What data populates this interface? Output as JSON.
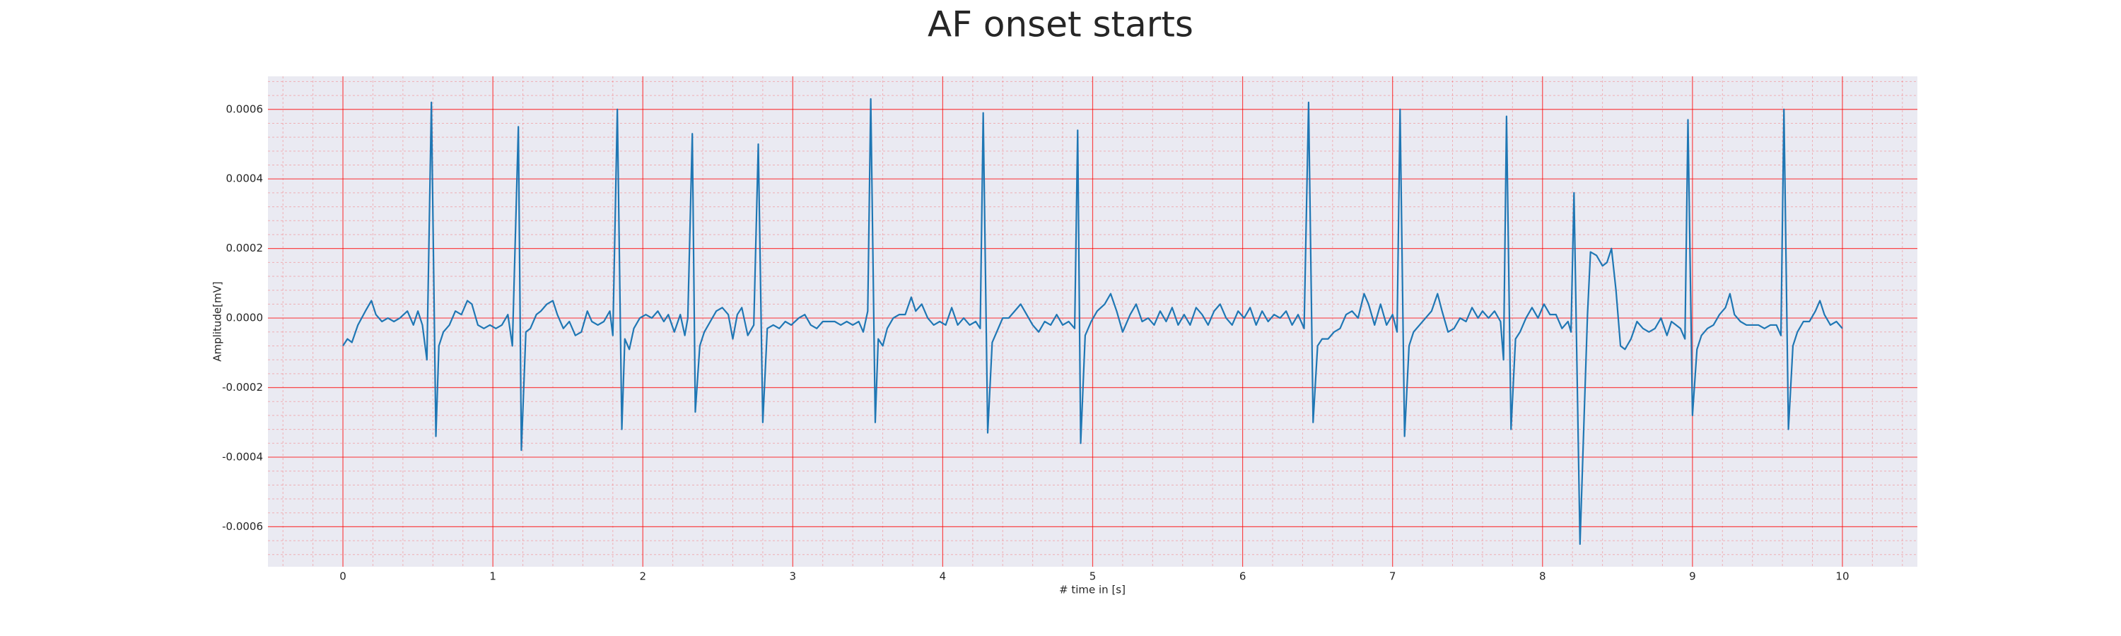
{
  "chart_data": {
    "type": "line",
    "title": "AF onset starts",
    "xlabel": "# time in [s]",
    "ylabel": "Amplitude[mV]",
    "color": "#1f77b4",
    "grid": true,
    "minor_grid": true,
    "grid_color": "#ff0000",
    "xlim": [
      -0.5,
      10.5
    ],
    "ylim": [
      -0.000715,
      0.000695
    ],
    "xticks": [
      0,
      1,
      2,
      3,
      4,
      5,
      6,
      7,
      8,
      9,
      10
    ],
    "yticks": [
      -0.0006,
      -0.0004,
      -0.0002,
      {
        "value": 0,
        "label": "0.0000"
      },
      0.0002,
      0.0004,
      0.0006
    ],
    "x": [
      0.0,
      0.03,
      0.06,
      0.1,
      0.15,
      0.19,
      0.22,
      0.26,
      0.3,
      0.34,
      0.38,
      0.43,
      0.47,
      0.5,
      0.53,
      0.56,
      0.59,
      0.62,
      0.64,
      0.67,
      0.71,
      0.75,
      0.79,
      0.83,
      0.86,
      0.9,
      0.94,
      0.98,
      1.02,
      1.06,
      1.1,
      1.13,
      1.17,
      1.19,
      1.22,
      1.25,
      1.29,
      1.32,
      1.36,
      1.4,
      1.43,
      1.47,
      1.51,
      1.55,
      1.59,
      1.63,
      1.66,
      1.7,
      1.74,
      1.78,
      1.8,
      1.83,
      1.86,
      1.88,
      1.91,
      1.94,
      1.98,
      2.02,
      2.06,
      2.1,
      2.14,
      2.17,
      2.21,
      2.25,
      2.28,
      2.3,
      2.33,
      2.35,
      2.38,
      2.41,
      2.45,
      2.49,
      2.53,
      2.57,
      2.6,
      2.63,
      2.66,
      2.7,
      2.74,
      2.77,
      2.8,
      2.83,
      2.87,
      2.91,
      2.95,
      2.99,
      3.04,
      3.08,
      3.12,
      3.16,
      3.2,
      3.24,
      3.28,
      3.32,
      3.36,
      3.4,
      3.44,
      3.47,
      3.5,
      3.52,
      3.55,
      3.57,
      3.6,
      3.63,
      3.67,
      3.71,
      3.75,
      3.79,
      3.82,
      3.86,
      3.9,
      3.94,
      3.98,
      4.02,
      4.06,
      4.1,
      4.14,
      4.18,
      4.22,
      4.25,
      4.27,
      4.3,
      4.33,
      4.36,
      4.4,
      4.44,
      4.48,
      4.52,
      4.56,
      4.6,
      4.64,
      4.68,
      4.72,
      4.76,
      4.8,
      4.84,
      4.88,
      4.9,
      4.92,
      4.95,
      4.99,
      5.03,
      5.08,
      5.12,
      5.16,
      5.2,
      5.25,
      5.29,
      5.33,
      5.37,
      5.41,
      5.45,
      5.49,
      5.53,
      5.57,
      5.61,
      5.65,
      5.69,
      5.73,
      5.77,
      5.81,
      5.85,
      5.89,
      5.93,
      5.97,
      6.01,
      6.05,
      6.09,
      6.13,
      6.17,
      6.21,
      6.25,
      6.29,
      6.33,
      6.37,
      6.41,
      6.44,
      6.47,
      6.5,
      6.53,
      6.57,
      6.61,
      6.65,
      6.69,
      6.73,
      6.77,
      6.81,
      6.84,
      6.88,
      6.92,
      6.96,
      7.0,
      7.03,
      7.05,
      7.08,
      7.11,
      7.14,
      7.18,
      7.22,
      7.26,
      7.3,
      7.33,
      7.37,
      7.41,
      7.45,
      7.49,
      7.53,
      7.57,
      7.6,
      7.64,
      7.68,
      7.72,
      7.74,
      7.76,
      7.79,
      7.82,
      7.85,
      7.89,
      7.93,
      7.97,
      8.01,
      8.05,
      8.09,
      8.13,
      8.17,
      8.19,
      8.21,
      8.25,
      8.28,
      8.3,
      8.32,
      8.36,
      8.4,
      8.43,
      8.46,
      8.49,
      8.52,
      8.55,
      8.59,
      8.63,
      8.67,
      8.71,
      8.75,
      8.79,
      8.83,
      8.86,
      8.89,
      8.92,
      8.95,
      8.97,
      9.0,
      9.03,
      9.06,
      9.1,
      9.14,
      9.18,
      9.22,
      9.25,
      9.28,
      9.32,
      9.36,
      9.4,
      9.44,
      9.48,
      9.52,
      9.56,
      9.59,
      9.61,
      9.64,
      9.67,
      9.7,
      9.74,
      9.78,
      9.82,
      9.85,
      9.88,
      9.92,
      9.96,
      10.0
    ],
    "values": [
      -8e-05,
      -6e-05,
      -7e-05,
      -2e-05,
      2e-05,
      5e-05,
      1e-05,
      -1e-05,
      0,
      -1e-05,
      0,
      2e-05,
      -2e-05,
      2e-05,
      -2e-05,
      -0.00012,
      0.00062,
      -0.00034,
      -8e-05,
      -4e-05,
      -2e-05,
      2e-05,
      1e-05,
      5e-05,
      4e-05,
      -2e-05,
      -3e-05,
      -2e-05,
      -3e-05,
      -2e-05,
      1e-05,
      -8e-05,
      0.00055,
      -0.00038,
      -4e-05,
      -3e-05,
      1e-05,
      2e-05,
      4e-05,
      5e-05,
      1e-05,
      -3e-05,
      -1e-05,
      -5e-05,
      -4e-05,
      2e-05,
      -1e-05,
      -2e-05,
      -1e-05,
      2e-05,
      -5e-05,
      0.0006,
      -0.00032,
      -6e-05,
      -9e-05,
      -3e-05,
      0,
      1e-05,
      0,
      2e-05,
      -1e-05,
      1e-05,
      -4e-05,
      1e-05,
      -5e-05,
      0,
      0.00053,
      -0.00027,
      -8e-05,
      -4e-05,
      -1e-05,
      2e-05,
      3e-05,
      1e-05,
      -6e-05,
      1e-05,
      3e-05,
      -5e-05,
      -2e-05,
      0.0005,
      -0.0003,
      -3e-05,
      -2e-05,
      -3e-05,
      -1e-05,
      -2e-05,
      0,
      1e-05,
      -2e-05,
      -3e-05,
      -1e-05,
      -1e-05,
      -1e-05,
      -2e-05,
      -1e-05,
      -2e-05,
      -1e-05,
      -4e-05,
      2e-05,
      0.00063,
      -0.0003,
      -6e-05,
      -8e-05,
      -3e-05,
      0,
      1e-05,
      1e-05,
      6e-05,
      2e-05,
      4e-05,
      0,
      -2e-05,
      -1e-05,
      -2e-05,
      3e-05,
      -2e-05,
      0,
      -2e-05,
      -1e-05,
      -3e-05,
      0.00059,
      -0.00033,
      -7e-05,
      -4e-05,
      0,
      0,
      2e-05,
      4e-05,
      1e-05,
      -2e-05,
      -4e-05,
      -1e-05,
      -2e-05,
      1e-05,
      -2e-05,
      -1e-05,
      -3e-05,
      0.00054,
      -0.00036,
      -5e-05,
      -1e-05,
      2e-05,
      4e-05,
      7e-05,
      2e-05,
      -4e-05,
      1e-05,
      4e-05,
      -1e-05,
      0,
      -2e-05,
      2e-05,
      -1e-05,
      3e-05,
      -2e-05,
      1e-05,
      -2e-05,
      3e-05,
      1e-05,
      -2e-05,
      2e-05,
      4e-05,
      0,
      -2e-05,
      2e-05,
      0,
      3e-05,
      -2e-05,
      2e-05,
      -1e-05,
      1e-05,
      0,
      2e-05,
      -2e-05,
      1e-05,
      -3e-05,
      0.00062,
      -0.0003,
      -8e-05,
      -6e-05,
      -6e-05,
      -4e-05,
      -3e-05,
      1e-05,
      2e-05,
      0,
      7e-05,
      4e-05,
      -2e-05,
      4e-05,
      -2e-05,
      1e-05,
      -4e-05,
      0.0006,
      -0.00034,
      -8e-05,
      -4e-05,
      -2e-05,
      0,
      2e-05,
      7e-05,
      2e-05,
      -4e-05,
      -3e-05,
      0,
      -1e-05,
      3e-05,
      0,
      2e-05,
      0,
      2e-05,
      -1e-05,
      -0.00012,
      0.00058,
      -0.00032,
      -6e-05,
      -4e-05,
      0,
      3e-05,
      0,
      4e-05,
      1e-05,
      1e-05,
      -3e-05,
      -1e-05,
      -4e-05,
      0.00036,
      -0.00065,
      -0.00025,
      1e-05,
      0.00019,
      0.00018,
      0.00015,
      0.00016,
      0.0002,
      8e-05,
      -8e-05,
      -9e-05,
      -6e-05,
      -1e-05,
      -3e-05,
      -4e-05,
      -3e-05,
      0,
      -5e-05,
      -1e-05,
      -2e-05,
      -3e-05,
      -6e-05,
      0.00057,
      -0.00028,
      -9e-05,
      -5e-05,
      -3e-05,
      -2e-05,
      1e-05,
      3e-05,
      7e-05,
      1e-05,
      -1e-05,
      -2e-05,
      -2e-05,
      -2e-05,
      -3e-05,
      -2e-05,
      -2e-05,
      -5e-05,
      0.0006,
      -0.00032,
      -8e-05,
      -4e-05,
      -1e-05,
      -1e-05,
      2e-05,
      5e-05,
      1e-05,
      -2e-05,
      -1e-05,
      -3e-05
    ]
  }
}
